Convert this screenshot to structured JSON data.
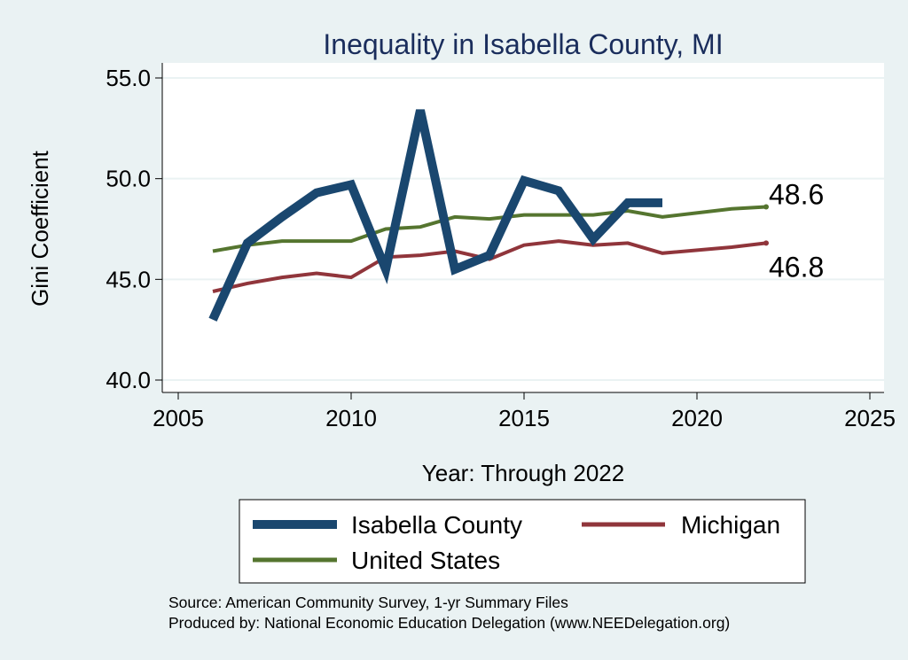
{
  "chart_data": {
    "type": "line",
    "title": "Inequality in Isabella County, MI",
    "xlabel": "Year: Through 2022",
    "ylabel": "Gini Coefficient",
    "xlim": [
      2005,
      2025
    ],
    "ylim": [
      40,
      55
    ],
    "xticks": [
      "2005",
      "2010",
      "2015",
      "2020",
      "2025"
    ],
    "yticks": [
      "40.0",
      "45.0",
      "50.0",
      "55.0"
    ],
    "grid": true,
    "series": [
      {
        "name": "Isabella County",
        "color": "#1a476f",
        "x": [
          2006,
          2007,
          2008,
          2009,
          2010,
          2011,
          2012,
          2013,
          2014,
          2015,
          2016,
          2017,
          2018,
          2019
        ],
        "values": [
          43.0,
          46.8,
          48.1,
          49.3,
          49.7,
          45.5,
          53.4,
          45.5,
          46.2,
          49.9,
          49.4,
          47.0,
          48.8,
          48.8
        ]
      },
      {
        "name": "Michigan",
        "color": "#90353b",
        "x": [
          2006,
          2007,
          2008,
          2009,
          2010,
          2011,
          2012,
          2013,
          2014,
          2015,
          2016,
          2017,
          2018,
          2019,
          2021,
          2022
        ],
        "values": [
          44.4,
          44.8,
          45.1,
          45.3,
          45.1,
          46.1,
          46.2,
          46.4,
          46.0,
          46.7,
          46.9,
          46.7,
          46.8,
          46.3,
          46.6,
          46.8
        ]
      },
      {
        "name": "United States",
        "color": "#55752f",
        "x": [
          2006,
          2007,
          2008,
          2009,
          2010,
          2011,
          2012,
          2013,
          2014,
          2015,
          2016,
          2017,
          2018,
          2019,
          2021,
          2022
        ],
        "values": [
          46.4,
          46.7,
          46.9,
          46.9,
          46.9,
          47.5,
          47.6,
          48.1,
          48.0,
          48.2,
          48.2,
          48.2,
          48.4,
          48.1,
          48.5,
          48.6
        ]
      }
    ],
    "end_labels": [
      {
        "series": "United States",
        "text": "48.6"
      },
      {
        "series": "Michigan",
        "text": "46.8"
      }
    ],
    "legend": {
      "position": "bottom",
      "entries": [
        "Isabella County",
        "Michigan",
        "United States"
      ]
    },
    "notes": [
      "Source: American Community Survey, 1-yr Summary Files",
      "Produced by: National Economic Education Delegation (www.NEEDelegation.org)"
    ]
  }
}
